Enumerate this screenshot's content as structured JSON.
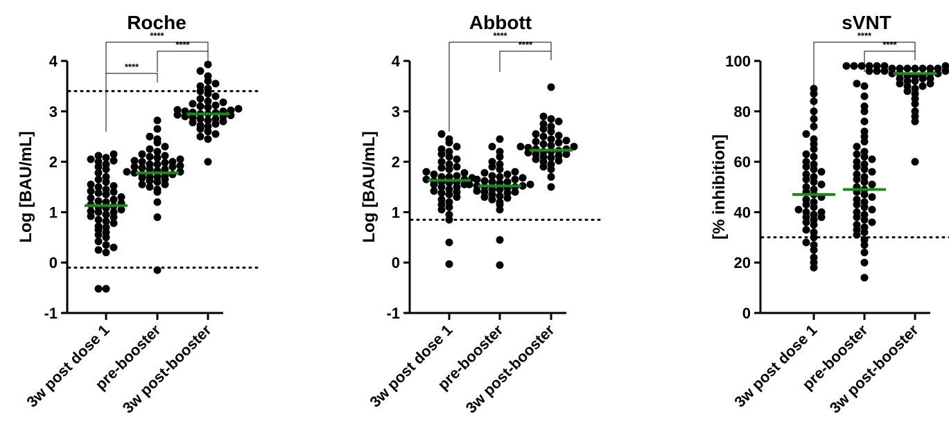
{
  "chart_data": [
    {
      "type": "scatter",
      "title": "Roche",
      "ylabel": "Log [BAU/mL]",
      "ylim": [
        -1,
        4
      ],
      "yticks": [
        "-1",
        "0",
        "1",
        "2",
        "3",
        "4"
      ],
      "categories": [
        "3w post dose 1",
        "pre-booster",
        "3w post-booster"
      ],
      "medians": [
        1.13,
        1.78,
        2.95
      ],
      "median_color": "#1a8a1a",
      "reference_lines": [
        3.4,
        -0.1
      ],
      "significance": [
        {
          "from": 0,
          "to": 1,
          "label": "****"
        },
        {
          "from": 1,
          "to": 2,
          "label": "****"
        },
        {
          "from": 0,
          "to": 2,
          "label": "****"
        }
      ],
      "series": [
        {
          "values": [
            -0.52,
            -0.52,
            0.2,
            0.25,
            0.3,
            0.35,
            0.42,
            0.5,
            0.55,
            0.6,
            0.65,
            0.7,
            0.72,
            0.78,
            0.82,
            0.85,
            0.9,
            0.92,
            0.95,
            1.0,
            1.0,
            1.02,
            1.05,
            1.08,
            1.1,
            1.12,
            1.15,
            1.18,
            1.2,
            1.22,
            1.25,
            1.28,
            1.3,
            1.35,
            1.38,
            1.4,
            1.42,
            1.45,
            1.5,
            1.52,
            1.55,
            1.6,
            1.65,
            1.7,
            1.78,
            1.85,
            1.9,
            1.95,
            2.0,
            2.02,
            2.05,
            2.08,
            2.12,
            2.15
          ]
        },
        {
          "values": [
            -0.15,
            0.9,
            1.2,
            1.4,
            1.45,
            1.5,
            1.55,
            1.55,
            1.6,
            1.62,
            1.65,
            1.68,
            1.7,
            1.7,
            1.72,
            1.75,
            1.75,
            1.78,
            1.8,
            1.8,
            1.82,
            1.85,
            1.85,
            1.88,
            1.9,
            1.9,
            1.92,
            1.95,
            1.95,
            1.98,
            2.0,
            2.0,
            2.02,
            2.05,
            2.08,
            2.1,
            2.12,
            2.15,
            2.2,
            2.25,
            2.3,
            2.38,
            2.45,
            2.5,
            2.65,
            2.82
          ]
        },
        {
          "values": [
            2.0,
            2.45,
            2.5,
            2.55,
            2.6,
            2.65,
            2.7,
            2.72,
            2.75,
            2.78,
            2.8,
            2.82,
            2.85,
            2.85,
            2.88,
            2.9,
            2.9,
            2.92,
            2.93,
            2.95,
            2.95,
            2.97,
            2.98,
            3.0,
            3.0,
            3.02,
            3.03,
            3.05,
            3.08,
            3.1,
            3.12,
            3.15,
            3.18,
            3.2,
            3.25,
            3.3,
            3.35,
            3.4,
            3.45,
            3.5,
            3.55,
            3.6,
            3.7,
            3.8,
            3.93
          ]
        }
      ]
    },
    {
      "type": "scatter",
      "title": "Abbott",
      "ylabel": "Log [BAU/mL]",
      "ylim": [
        -1,
        4
      ],
      "yticks": [
        "-1",
        "0",
        "1",
        "2",
        "3",
        "4"
      ],
      "categories": [
        "3w post dose 1",
        "pre-booster",
        "3w post-booster"
      ],
      "medians": [
        1.63,
        1.52,
        2.23
      ],
      "median_color": "#1a8a1a",
      "reference_lines": [
        0.85
      ],
      "significance": [
        {
          "from": 1,
          "to": 2,
          "label": "****"
        },
        {
          "from": 0,
          "to": 2,
          "label": "****"
        }
      ],
      "series": [
        {
          "values": [
            -0.03,
            0.4,
            0.85,
            0.95,
            1.05,
            1.1,
            1.15,
            1.2,
            1.25,
            1.3,
            1.35,
            1.38,
            1.4,
            1.42,
            1.45,
            1.5,
            1.5,
            1.55,
            1.55,
            1.58,
            1.6,
            1.6,
            1.62,
            1.65,
            1.65,
            1.68,
            1.7,
            1.7,
            1.72,
            1.75,
            1.78,
            1.8,
            1.85,
            1.88,
            1.9,
            1.95,
            2.0,
            2.05,
            2.1,
            2.15,
            2.2,
            2.25,
            2.3,
            2.38,
            2.45,
            2.55
          ]
        },
        {
          "values": [
            -0.05,
            0.45,
            1.05,
            1.15,
            1.2,
            1.25,
            1.28,
            1.3,
            1.32,
            1.35,
            1.38,
            1.4,
            1.4,
            1.42,
            1.45,
            1.45,
            1.48,
            1.5,
            1.5,
            1.52,
            1.52,
            1.55,
            1.55,
            1.58,
            1.6,
            1.6,
            1.62,
            1.65,
            1.65,
            1.68,
            1.7,
            1.72,
            1.75,
            1.78,
            1.8,
            1.85,
            1.9,
            1.95,
            2.0,
            2.1,
            2.2,
            2.3,
            2.45
          ]
        },
        {
          "values": [
            1.5,
            1.7,
            1.85,
            1.9,
            1.95,
            2.0,
            2.02,
            2.05,
            2.08,
            2.1,
            2.12,
            2.15,
            2.15,
            2.18,
            2.2,
            2.2,
            2.22,
            2.25,
            2.25,
            2.28,
            2.3,
            2.3,
            2.32,
            2.35,
            2.38,
            2.4,
            2.42,
            2.45,
            2.5,
            2.52,
            2.55,
            2.6,
            2.65,
            2.7,
            2.75,
            2.8,
            2.85,
            2.9,
            3.48
          ]
        }
      ]
    },
    {
      "type": "scatter",
      "title": "sVNT",
      "ylabel": "[% inhibition]",
      "ylim": [
        0,
        100
      ],
      "yticks": [
        "0",
        "20",
        "40",
        "60",
        "80",
        "100"
      ],
      "categories": [
        "3w post dose 1",
        "pre-booster",
        "3w post-booster"
      ],
      "medians": [
        47,
        49,
        95
      ],
      "median_color": "#1a8a1a",
      "reference_lines": [
        30
      ],
      "significance": [
        {
          "from": 1,
          "to": 2,
          "label": "****"
        },
        {
          "from": 0,
          "to": 2,
          "label": "****"
        }
      ],
      "series": [
        {
          "values": [
            18,
            20,
            22,
            25,
            27,
            28,
            30,
            32,
            33,
            35,
            36,
            37,
            38,
            38,
            39,
            40,
            40,
            41,
            42,
            43,
            44,
            45,
            46,
            47,
            48,
            49,
            50,
            51,
            52,
            53,
            54,
            55,
            56,
            57,
            58,
            59,
            60,
            62,
            63,
            65,
            67,
            69,
            71,
            74,
            77,
            80,
            84,
            87,
            89
          ]
        },
        {
          "values": [
            14,
            20,
            24,
            27,
            29,
            31,
            32,
            33,
            34,
            35,
            36,
            37,
            38,
            39,
            40,
            41,
            42,
            43,
            44,
            45,
            46,
            47,
            48,
            49,
            50,
            51,
            52,
            53,
            54,
            55,
            56,
            57,
            58,
            59,
            60,
            61,
            62,
            63,
            64,
            66,
            68,
            70,
            72,
            76,
            80,
            82,
            86,
            90,
            91
          ]
        },
        {
          "values": [
            60,
            76,
            78,
            80,
            83,
            85,
            87,
            88,
            89,
            90,
            90,
            91,
            91,
            92,
            92,
            93,
            93,
            93,
            94,
            94,
            94,
            95,
            95,
            95,
            95,
            96,
            96,
            96,
            96,
            96,
            97,
            97,
            97,
            97,
            97,
            97,
            97,
            98,
            98,
            98,
            98,
            98,
            98,
            98,
            98,
            98,
            98,
            98,
            98
          ]
        }
      ]
    }
  ]
}
